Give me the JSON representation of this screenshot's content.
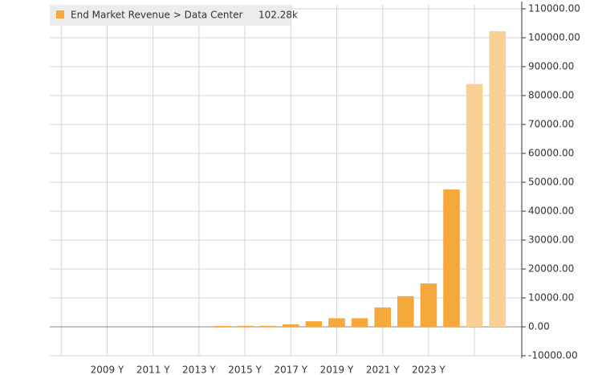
{
  "chart_data": {
    "type": "bar",
    "legend_label": "End Market Revenue > Data Center",
    "legend_value_label": "102.28k",
    "categories": [
      null,
      null,
      "2009 Y",
      null,
      "2011 Y",
      null,
      "2013 Y",
      null,
      "2015 Y",
      null,
      "2017 Y",
      null,
      "2019 Y",
      null,
      "2021 Y",
      null,
      "2023 Y",
      null,
      null,
      null
    ],
    "values": [
      null,
      null,
      null,
      null,
      null,
      null,
      null,
      300,
      340,
      340,
      830,
      1930,
      2980,
      2980,
      6700,
      10600,
      15000,
      47500,
      84000,
      102280
    ],
    "colors": [
      "#f5a93c",
      "#f5a93c",
      "#f5a93c",
      "#f5a93c",
      "#f5a93c",
      "#f5a93c",
      "#f5a93c",
      "#f5a93c",
      "#f5a93c",
      "#f5a93c",
      "#f5a93c",
      "#f5a93c",
      "#f5a93c",
      "#f5a93c",
      "#f5a93c",
      "#f5a93c",
      "#f5a93c",
      "#f5a93c",
      "#f9d195",
      "#f9d195"
    ],
    "legend_color": "#f5a93c",
    "ylim": [
      -10000,
      110000
    ],
    "yticks": [
      {
        "value": -10000,
        "label": "-10000.00"
      },
      {
        "value": 0,
        "label": "0.00"
      },
      {
        "value": 10000,
        "label": "10000.00"
      },
      {
        "value": 20000,
        "label": "20000.00"
      },
      {
        "value": 30000,
        "label": "30000.00"
      },
      {
        "value": 40000,
        "label": "40000.00"
      },
      {
        "value": 50000,
        "label": "50000.00"
      },
      {
        "value": 60000,
        "label": "60000.00"
      },
      {
        "value": 70000,
        "label": "70000.00"
      },
      {
        "value": 80000,
        "label": "80000.00"
      },
      {
        "value": 90000,
        "label": "90000.00"
      },
      {
        "value": 100000,
        "label": "100000.00"
      },
      {
        "value": 110000,
        "label": "110000.00"
      }
    ],
    "grid": true
  }
}
